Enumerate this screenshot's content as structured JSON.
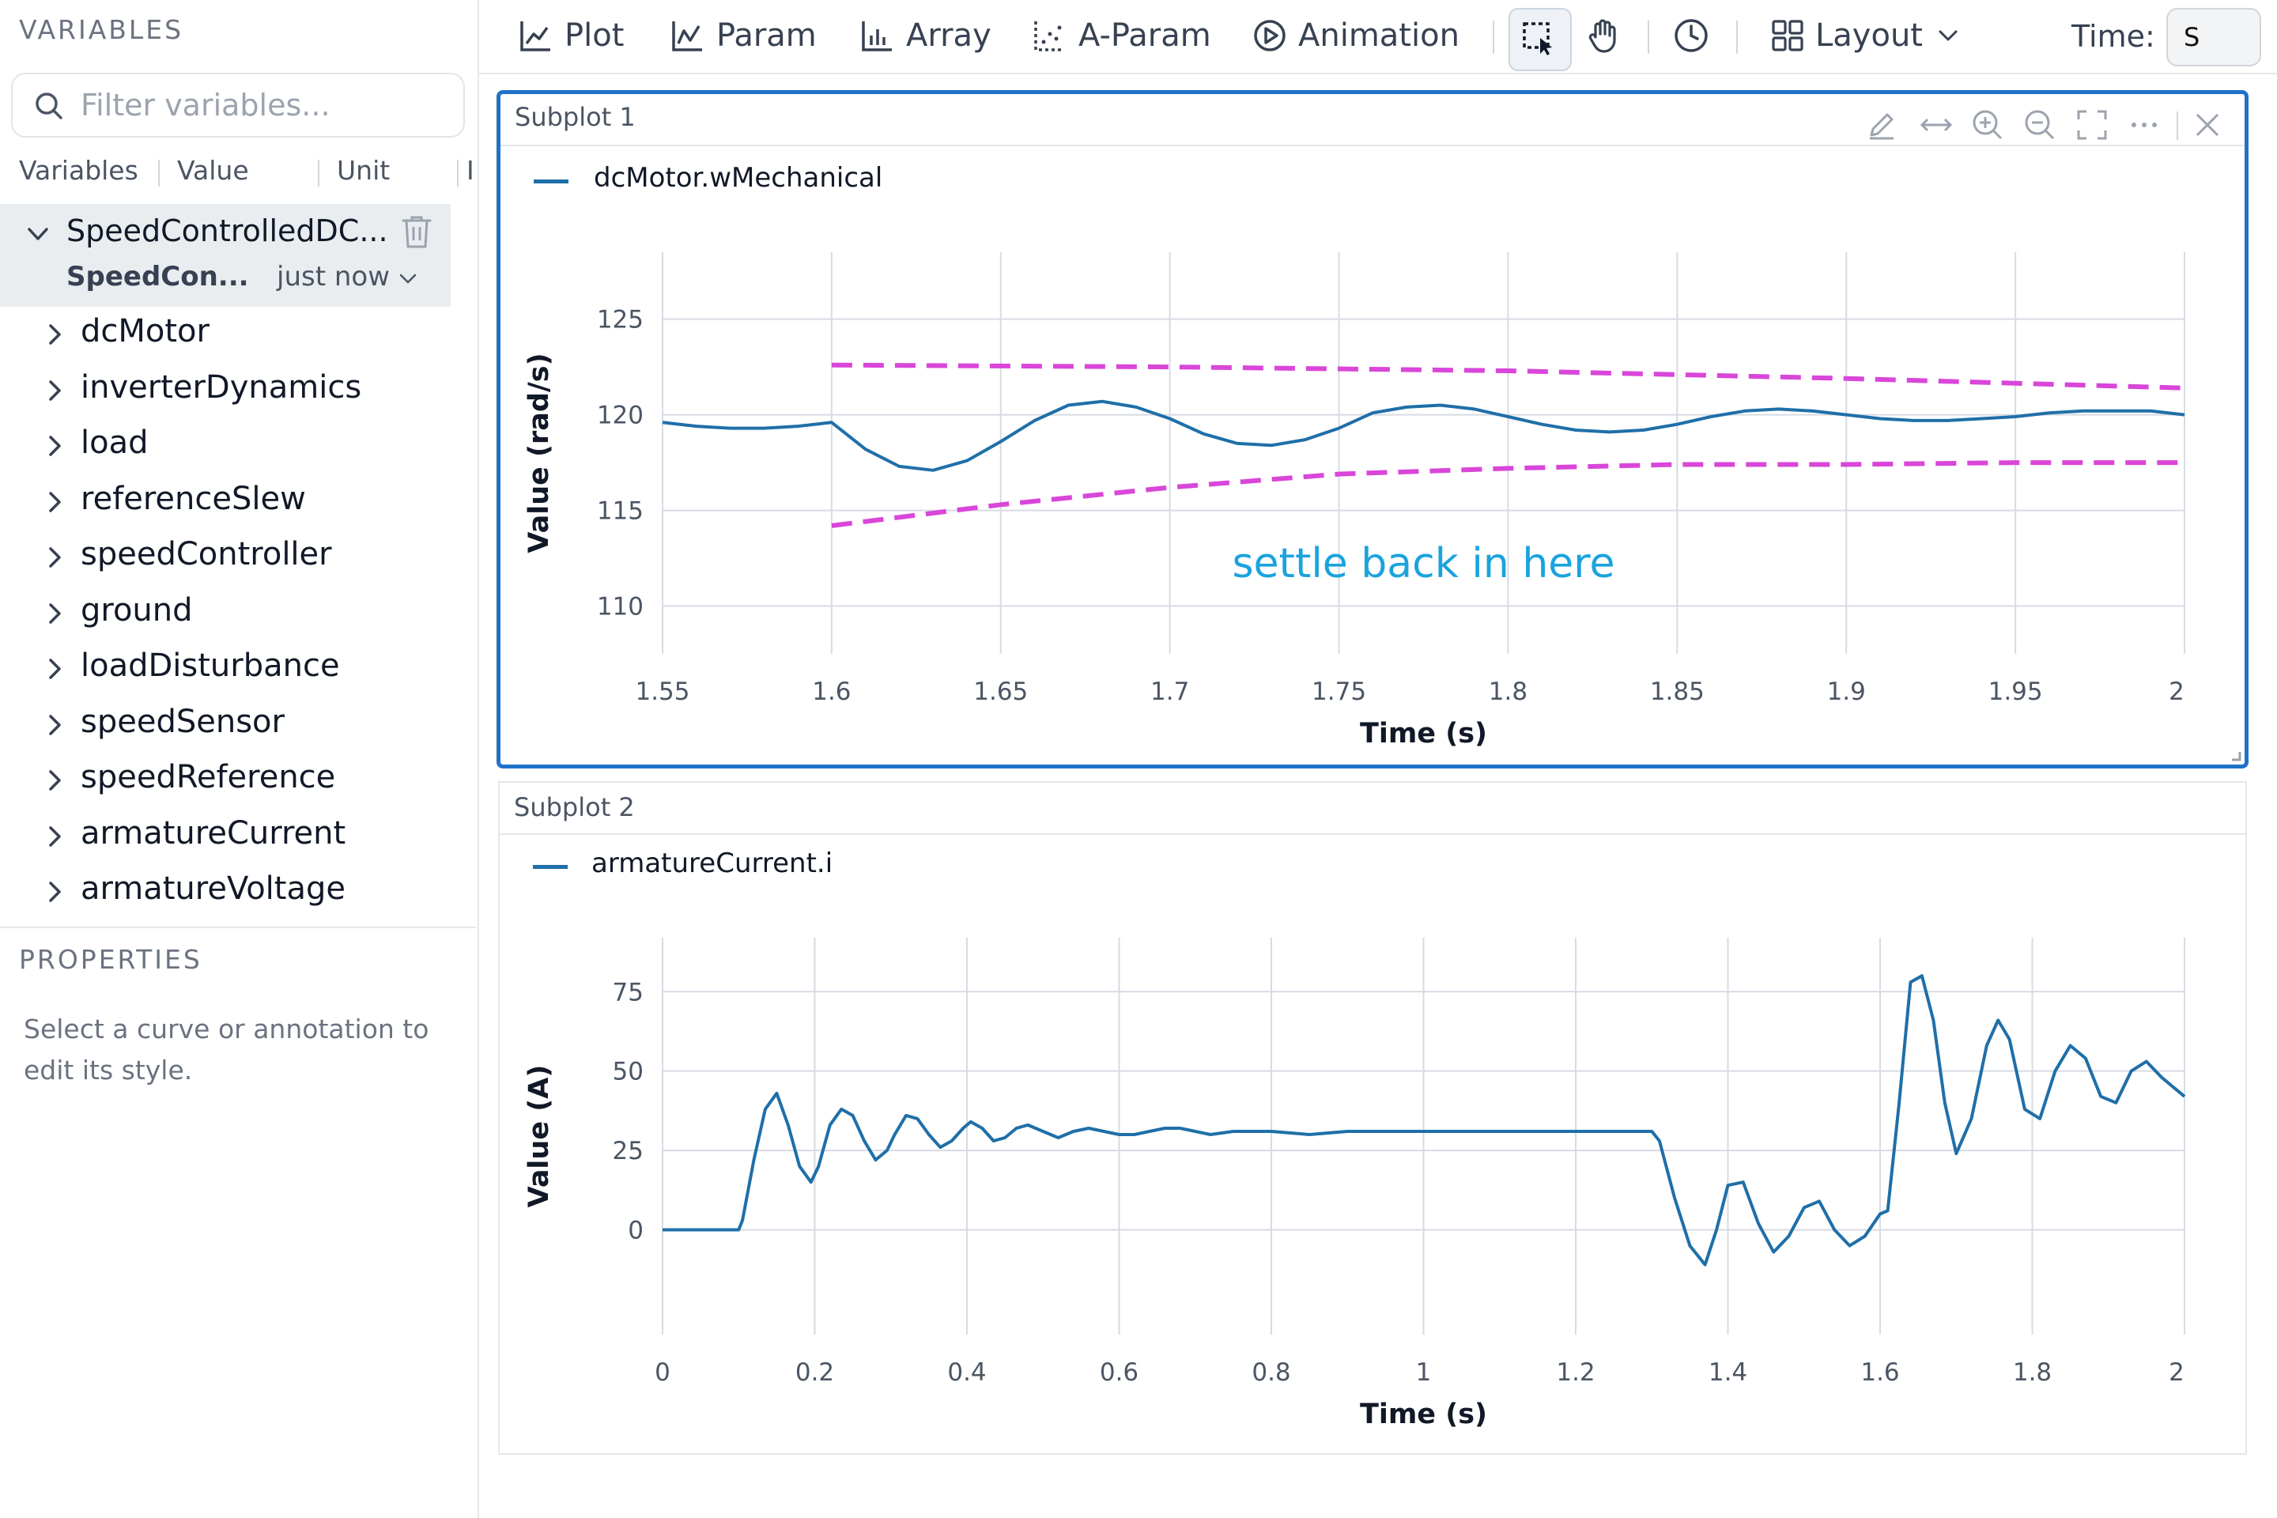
{
  "sidebar": {
    "variables_title": "VARIABLES",
    "search_placeholder": "Filter variables...",
    "columns": [
      "Variables",
      "Value",
      "Unit",
      "I"
    ],
    "model": {
      "name": "SpeedControlledDC...",
      "sub": "SpeedCon...",
      "time": "just now"
    },
    "items": [
      {
        "label": "dcMotor"
      },
      {
        "label": "inverterDynamics"
      },
      {
        "label": "load"
      },
      {
        "label": "referenceSlew"
      },
      {
        "label": "speedController"
      },
      {
        "label": "ground"
      },
      {
        "label": "loadDisturbance"
      },
      {
        "label": "speedSensor"
      },
      {
        "label": "speedReference"
      },
      {
        "label": "armatureCurrent"
      },
      {
        "label": "armatureVoltage"
      }
    ],
    "properties_title": "PROPERTIES",
    "properties_text": "Select a curve or annotation to edit its style."
  },
  "toolbar": {
    "plot": "Plot",
    "param": "Param",
    "array": "Array",
    "aparam": "A-Param",
    "animation": "Animation",
    "layout": "Layout",
    "time_label": "Time:",
    "time_value": "S"
  },
  "subplots": [
    {
      "title": "Subplot 1",
      "legend": "dcMotor.wMechanical",
      "annotation": "settle back in here"
    },
    {
      "title": "Subplot 2",
      "legend": "armatureCurrent.i"
    }
  ],
  "colors": {
    "accent": "#1e73c8",
    "curve": "#1f6fa8",
    "envelope": "#d946d9",
    "annotation": "#1aa3dd"
  },
  "chart_data": [
    {
      "type": "line",
      "xlabel": "Time (s)",
      "ylabel": "Value (rad/s)",
      "xlim": [
        1.55,
        2.0
      ],
      "ylim": [
        107.5,
        128.5
      ],
      "xticks": [
        1.55,
        1.6,
        1.65,
        1.7,
        1.75,
        1.8,
        1.85,
        1.9,
        1.95,
        2
      ],
      "xtick_labels": [
        "1.55",
        "1.6",
        "1.65",
        "1.7",
        "1.75",
        "1.8",
        "1.85",
        "1.9",
        "1.95",
        "2"
      ],
      "yticks": [
        110,
        115,
        120,
        125
      ],
      "grid": true,
      "series": [
        {
          "name": "dcMotor.wMechanical",
          "style": "solid",
          "x": [
            1.55,
            1.56,
            1.57,
            1.58,
            1.59,
            1.6,
            1.61,
            1.62,
            1.63,
            1.64,
            1.65,
            1.66,
            1.67,
            1.68,
            1.69,
            1.7,
            1.71,
            1.72,
            1.73,
            1.74,
            1.75,
            1.76,
            1.77,
            1.78,
            1.79,
            1.8,
            1.81,
            1.82,
            1.83,
            1.84,
            1.85,
            1.86,
            1.87,
            1.88,
            1.89,
            1.9,
            1.91,
            1.92,
            1.93,
            1.94,
            1.95,
            1.96,
            1.97,
            1.98,
            1.99,
            2.0
          ],
          "y": [
            119.6,
            119.4,
            119.3,
            119.3,
            119.4,
            119.6,
            118.2,
            117.3,
            117.1,
            117.6,
            118.6,
            119.7,
            120.5,
            120.7,
            120.4,
            119.8,
            119.0,
            118.5,
            118.4,
            118.7,
            119.3,
            120.1,
            120.4,
            120.5,
            120.3,
            119.9,
            119.5,
            119.2,
            119.1,
            119.2,
            119.5,
            119.9,
            120.2,
            120.3,
            120.2,
            120.0,
            119.8,
            119.7,
            119.7,
            119.8,
            119.9,
            120.1,
            120.2,
            120.2,
            120.2,
            120.0
          ]
        },
        {
          "name": "",
          "style": "dashed",
          "x": [
            1.6,
            1.7,
            1.8,
            1.9,
            2.0
          ],
          "y": [
            122.6,
            122.5,
            122.3,
            121.9,
            121.4
          ]
        },
        {
          "name": "",
          "style": "dashed",
          "x": [
            1.6,
            1.65,
            1.7,
            1.75,
            1.8,
            1.85,
            1.9,
            1.95,
            2.0
          ],
          "y": [
            114.2,
            115.3,
            116.2,
            116.9,
            117.2,
            117.4,
            117.4,
            117.5,
            117.5
          ]
        }
      ],
      "annotations": [
        {
          "text": "settle back in here",
          "x": 1.775,
          "y": 111.5
        }
      ]
    },
    {
      "type": "line",
      "xlabel": "Time (s)",
      "ylabel": "Value (A)",
      "xlim": [
        0,
        2.0
      ],
      "ylim": [
        -33,
        92
      ],
      "xticks": [
        0,
        0.2,
        0.4,
        0.6,
        0.8,
        1,
        1.2,
        1.4,
        1.6,
        1.8,
        2
      ],
      "xtick_labels": [
        "0",
        "0.2",
        "0.4",
        "0.6",
        "0.8",
        "1",
        "1.2",
        "1.4",
        "1.6",
        "1.8",
        "2"
      ],
      "yticks": [
        0,
        25,
        50,
        75
      ],
      "grid": true,
      "series": [
        {
          "name": "armatureCurrent.i",
          "style": "solid",
          "x": [
            0,
            0.1,
            0.105,
            0.12,
            0.135,
            0.15,
            0.165,
            0.18,
            0.195,
            0.205,
            0.22,
            0.235,
            0.25,
            0.265,
            0.28,
            0.295,
            0.305,
            0.32,
            0.335,
            0.35,
            0.365,
            0.38,
            0.395,
            0.405,
            0.42,
            0.435,
            0.45,
            0.465,
            0.48,
            0.5,
            0.52,
            0.54,
            0.56,
            0.58,
            0.6,
            0.62,
            0.64,
            0.66,
            0.68,
            0.7,
            0.72,
            0.75,
            0.8,
            0.85,
            0.9,
            1.0,
            1.1,
            1.2,
            1.25,
            1.3,
            1.31,
            1.33,
            1.35,
            1.37,
            1.385,
            1.4,
            1.42,
            1.44,
            1.46,
            1.48,
            1.5,
            1.52,
            1.54,
            1.56,
            1.58,
            1.6,
            1.61,
            1.625,
            1.64,
            1.655,
            1.67,
            1.685,
            1.7,
            1.72,
            1.74,
            1.755,
            1.77,
            1.79,
            1.81,
            1.83,
            1.85,
            1.87,
            1.89,
            1.91,
            1.93,
            1.95,
            1.97,
            1.99,
            2.0
          ],
          "y": [
            0,
            0,
            3,
            22,
            38,
            43,
            33,
            20,
            15,
            20,
            33,
            38,
            36,
            28,
            22,
            25,
            30,
            36,
            35,
            30,
            26,
            28,
            32,
            34,
            32,
            28,
            29,
            32,
            33,
            31,
            29,
            31,
            32,
            31,
            30,
            30,
            31,
            32,
            32,
            31,
            30,
            31,
            31,
            30,
            31,
            31,
            31,
            31,
            31,
            31,
            28,
            10,
            -5,
            -11,
            0,
            14,
            15,
            2,
            -7,
            -2,
            7,
            9,
            0,
            -5,
            -2,
            5,
            6,
            40,
            78,
            80,
            66,
            40,
            24,
            35,
            58,
            66,
            60,
            38,
            35,
            50,
            58,
            54,
            42,
            40,
            50,
            53,
            48,
            44,
            42
          ]
        }
      ]
    }
  ]
}
